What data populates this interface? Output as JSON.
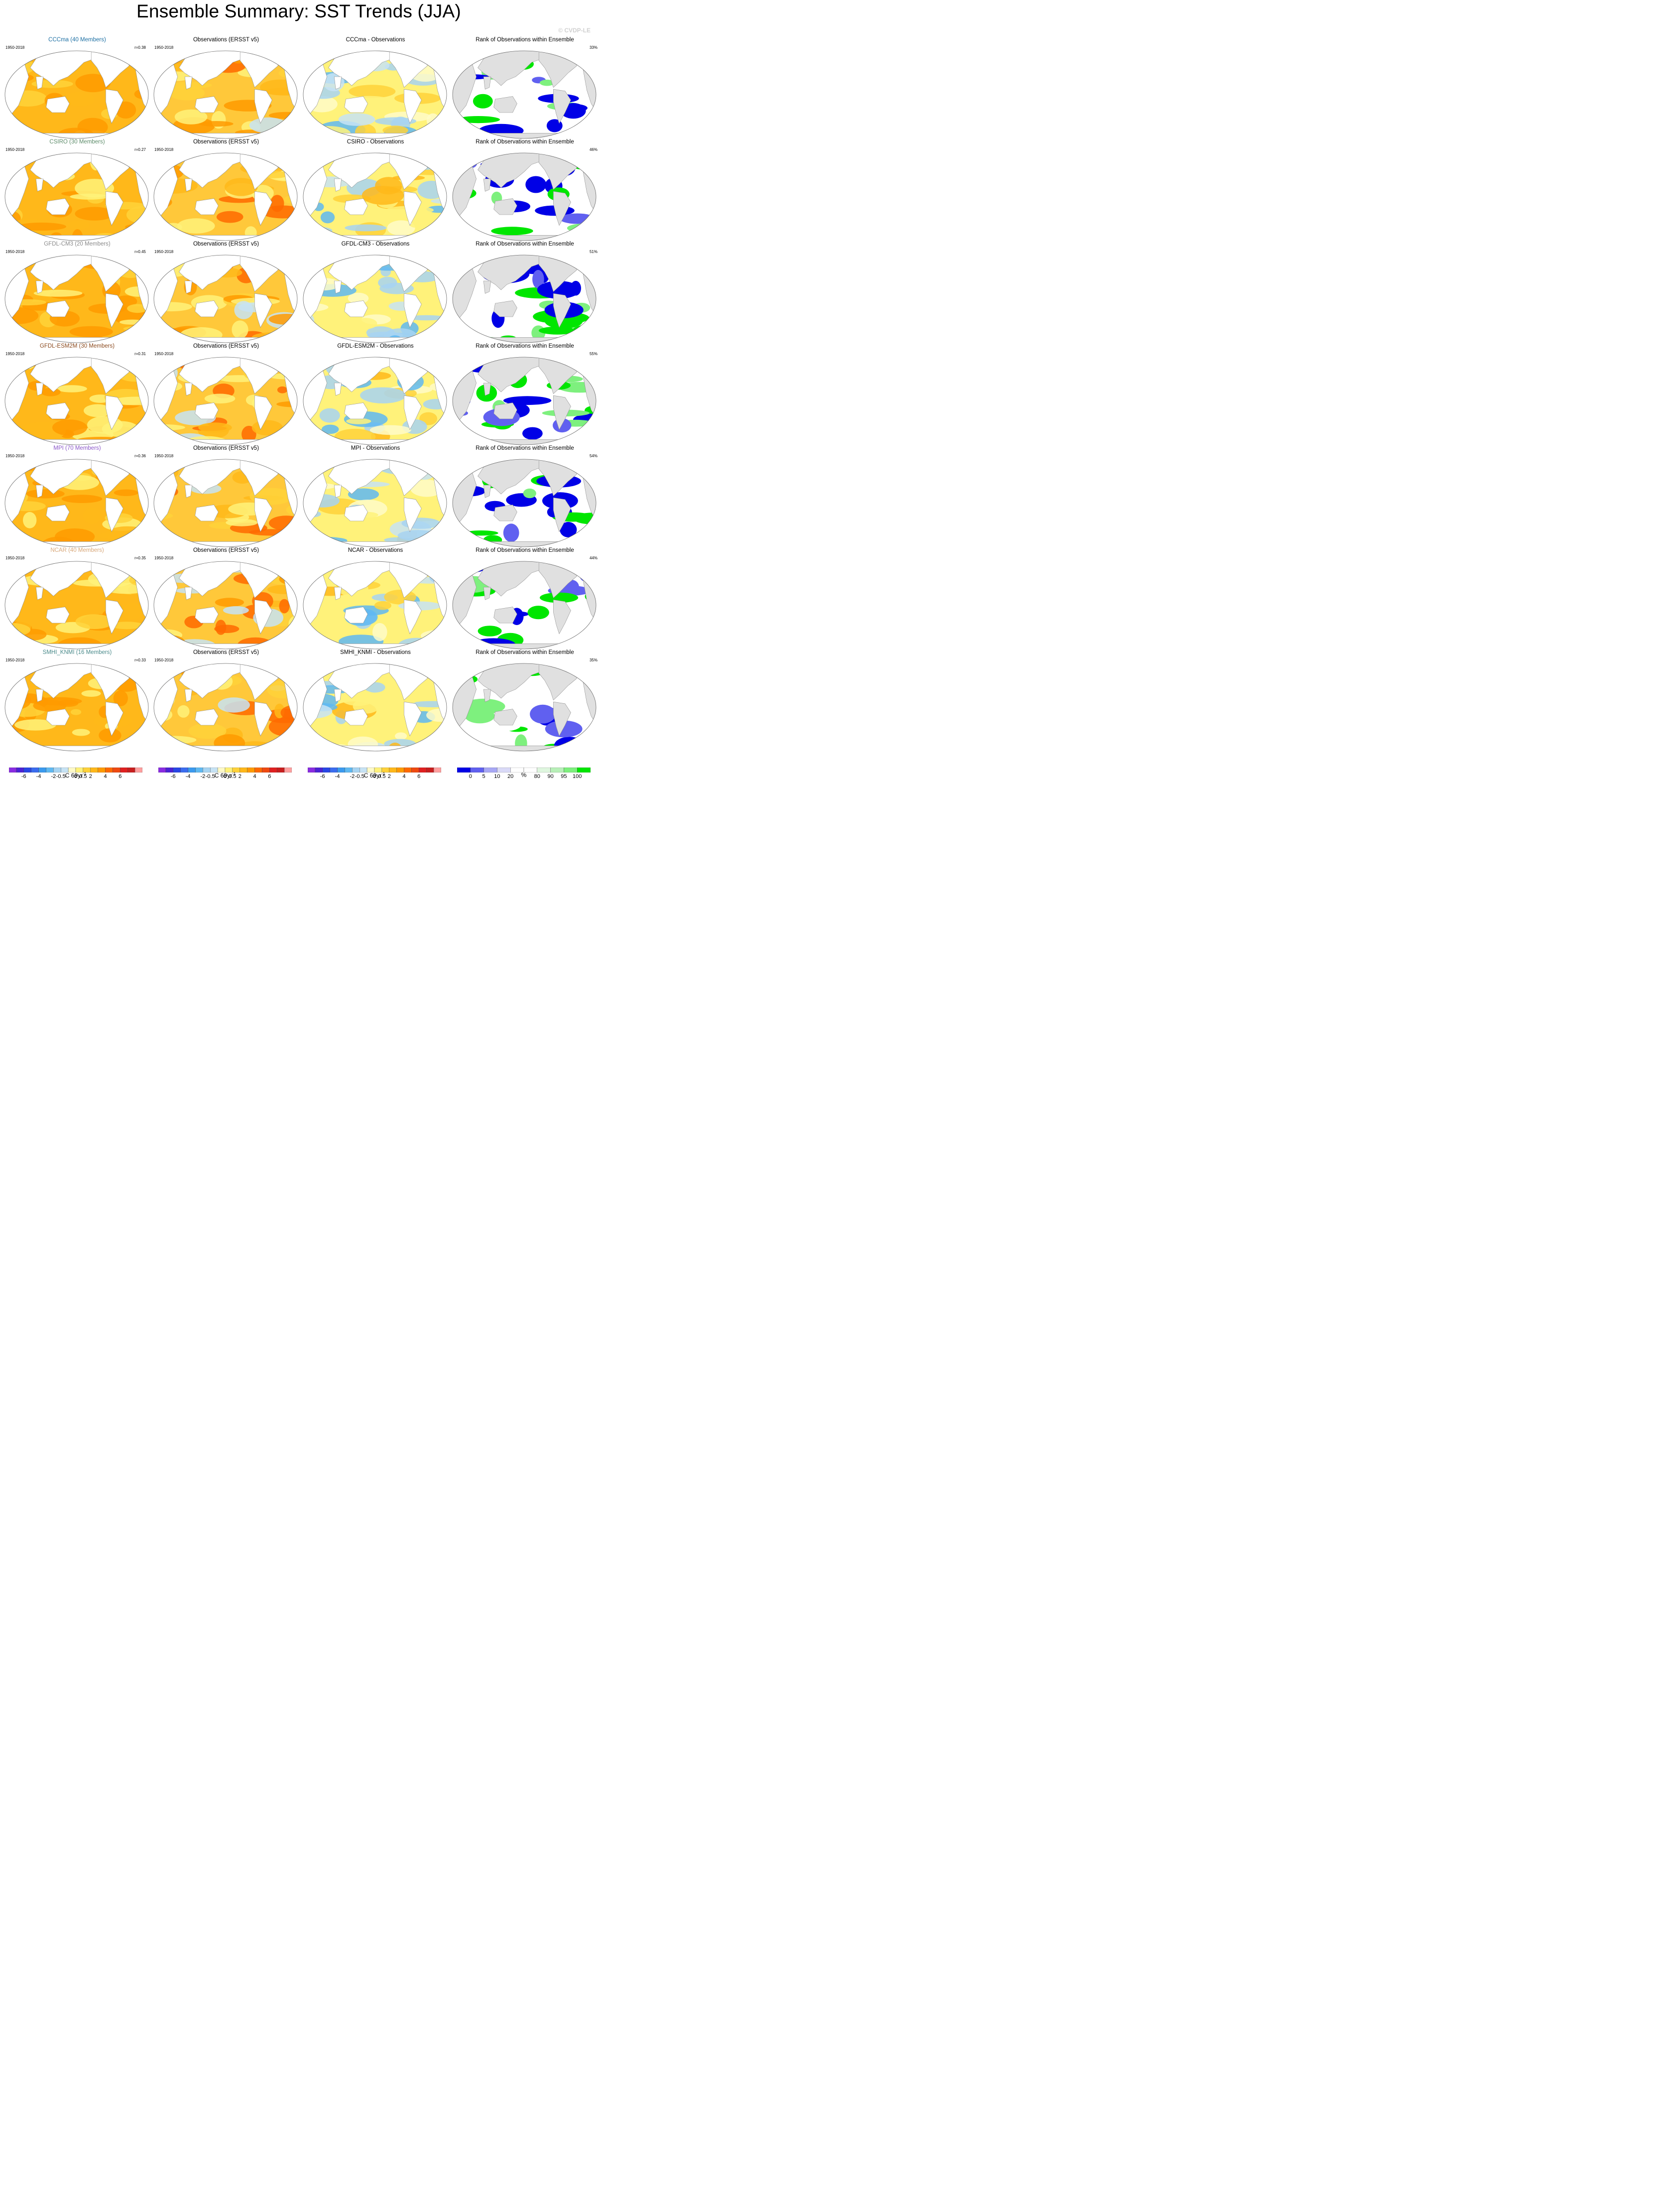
{
  "title": "Ensemble Summary: SST Trends (JJA)",
  "watermark": "© CVDP-LE",
  "colors": {
    "model_title": [
      "#1c6fa3",
      "#5d8c6a",
      "#8a8a8a",
      "#8b4a1e",
      "#8a56c8",
      "#d8a87a",
      "#4a8a8a"
    ],
    "trend_palette": [
      "#8a2be2",
      "#4b22d6",
      "#2846e6",
      "#3a6cf0",
      "#3a9aef",
      "#5fb9f2",
      "#a7d4f2",
      "#c7e3f5",
      "#fffbc8",
      "#fff27a",
      "#ffd23a",
      "#ffb81a",
      "#ff9a00",
      "#ff6a00",
      "#f04a10",
      "#e02020",
      "#c81e1e",
      "#ffa0a0"
    ],
    "rank_palette": [
      "#0000e6",
      "#6060f0",
      "#a8a8f5",
      "#dadaf8",
      "#ffffff",
      "#ffffff",
      "#dff7df",
      "#b8f0b8",
      "#7ef07e",
      "#00e600"
    ],
    "land": "#e0e0e0",
    "ocean_base": "#ffc040"
  },
  "rows": [
    {
      "model_title": "CCCma (40 Members)",
      "period": "1950-2018",
      "r": "r=0.38",
      "obs_title": "Observations (ERSST v5)",
      "diff_title": "CCCma - Observations",
      "rank_title": "Rank of Observations within Ensemble",
      "rank_pct": "33%"
    },
    {
      "model_title": "CSIRO (30 Members)",
      "period": "1950-2018",
      "r": "r=0.27",
      "obs_title": "Observations (ERSST v5)",
      "diff_title": "CSIRO - Observations",
      "rank_title": "Rank of Observations within Ensemble",
      "rank_pct": "46%"
    },
    {
      "model_title": "GFDL-CM3 (20 Members)",
      "period": "1950-2018",
      "r": "r=0.45",
      "obs_title": "Observations (ERSST v5)",
      "diff_title": "GFDL-CM3 - Observations",
      "rank_title": "Rank of Observations within Ensemble",
      "rank_pct": "51%"
    },
    {
      "model_title": "GFDL-ESM2M (30 Members)",
      "period": "1950-2018",
      "r": "r=0.31",
      "obs_title": "Observations (ERSST v5)",
      "diff_title": "GFDL-ESM2M - Observations",
      "rank_title": "Rank of Observations within Ensemble",
      "rank_pct": "55%"
    },
    {
      "model_title": "MPI (70 Members)",
      "period": "1950-2018",
      "r": "r=0.36",
      "obs_title": "Observations (ERSST v5)",
      "diff_title": "MPI - Observations",
      "rank_title": "Rank of Observations within Ensemble",
      "rank_pct": "54%"
    },
    {
      "model_title": "NCAR (40 Members)",
      "period": "1950-2018",
      "r": "r=0.35",
      "obs_title": "Observations (ERSST v5)",
      "diff_title": "NCAR - Observations",
      "rank_title": "Rank of Observations within Ensemble",
      "rank_pct": "44%"
    },
    {
      "model_title": "SMHI_KNMI (16 Members)",
      "period": "1950-2018",
      "r": "r=0.33",
      "obs_title": "Observations (ERSST v5)",
      "diff_title": "SMHI_KNMI - Observations",
      "rank_title": "Rank of Observations within Ensemble",
      "rank_pct": "35%"
    }
  ],
  "chart_data": {
    "type": "heatmap",
    "title": "Ensemble Summary: SST Trends (JJA)",
    "projection": "global map",
    "columns": [
      "model ensemble-mean trend",
      "observations",
      "model minus observations",
      "rank of observations within ensemble"
    ],
    "trend_colorbar": {
      "tick_labels": [
        "-6",
        "-4",
        "-2",
        "-0.5",
        "0",
        "0.5",
        "2",
        "4",
        "6"
      ],
      "units": "C 69yr",
      "units_superscript": "-1"
    },
    "rank_colorbar": {
      "tick_labels": [
        "0",
        "5",
        "10",
        "20",
        "80",
        "90",
        "95",
        "100"
      ],
      "units": "%"
    },
    "rank_summary_percent": {
      "CCCma": 33,
      "CSIRO": 46,
      "GFDL-CM3": 51,
      "GFDL-ESM2M": 55,
      "MPI": 54,
      "NCAR": 44,
      "SMHI_KNMI": 35
    },
    "pattern_correlation": {
      "CCCma": 0.38,
      "CSIRO": 0.27,
      "GFDL-CM3": 0.45,
      "GFDL-ESM2M": 0.31,
      "MPI": 0.36,
      "NCAR": 0.35,
      "SMHI_KNMI": 0.33
    }
  }
}
